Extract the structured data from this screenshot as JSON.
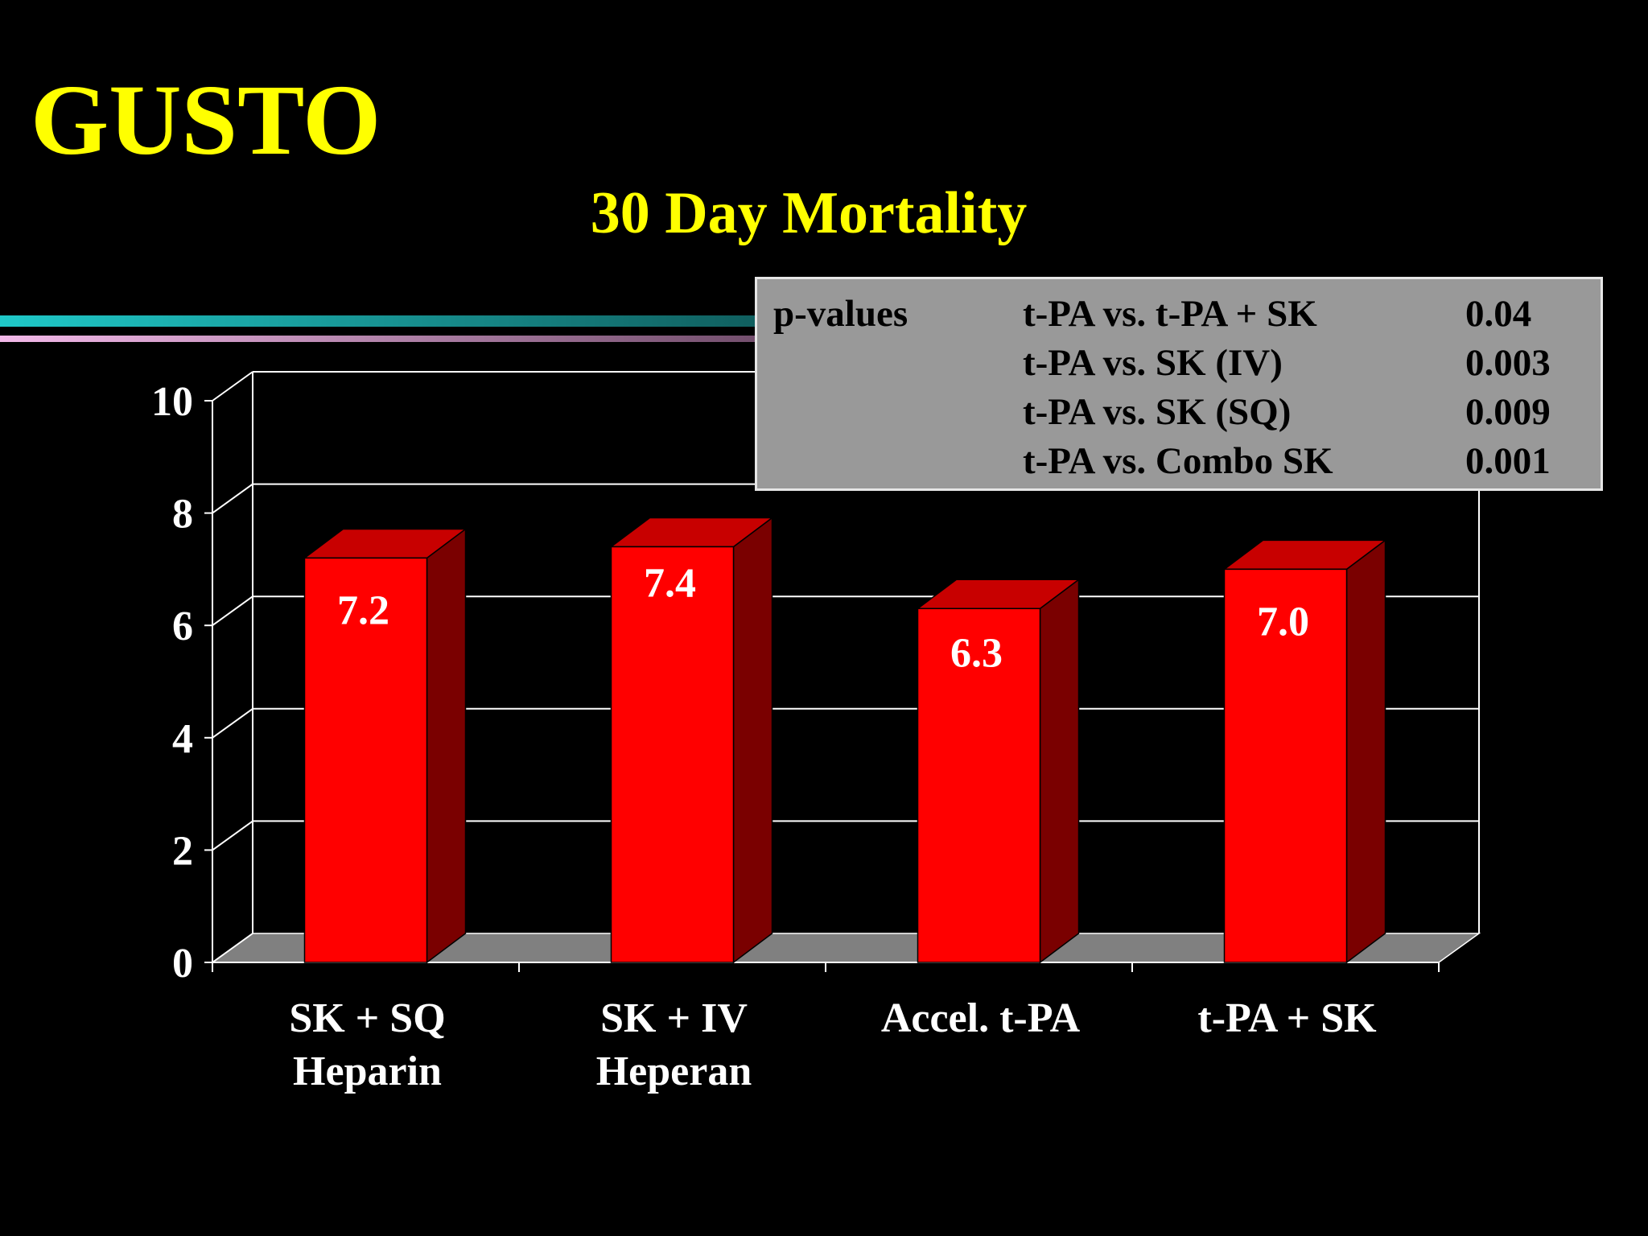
{
  "slide": {
    "title": "GUSTO",
    "subtitle": "30 Day Mortality",
    "title_color": "#ffff00",
    "stripe_colors": [
      "#1fc8c8",
      "#f2b8e8"
    ]
  },
  "pvalues": {
    "label": "p-values",
    "rows": [
      {
        "comparison": "t-PA vs. t-PA + SK",
        "value": "0.04"
      },
      {
        "comparison": "t-PA vs. SK (IV)",
        "value": "0.003"
      },
      {
        "comparison": "t-PA vs. SK (SQ)",
        "value": "0.009"
      },
      {
        "comparison": "t-PA vs. Combo SK",
        "value": "0.001"
      }
    ]
  },
  "chart_data": {
    "type": "bar",
    "categories": [
      [
        "SK + SQ",
        "Heparin"
      ],
      [
        "SK +  IV",
        "Heperan"
      ],
      [
        "Accel. t-PA"
      ],
      [
        "t-PA + SK"
      ]
    ],
    "values": [
      7.2,
      7.4,
      6.3,
      7.0
    ],
    "data_labels": [
      "7.2",
      "7.4",
      "6.3",
      "7.0"
    ],
    "ylim": [
      0,
      10
    ],
    "yticks": [
      0,
      2,
      4,
      6,
      8,
      10
    ],
    "ytick_labels": [
      "0",
      "2",
      "4",
      "6",
      "8",
      "10"
    ],
    "grid": true,
    "bar_color": "#ff0000",
    "bar_side_color": "#7a0000",
    "bar_top_color": "#c80000",
    "floor_color": "#808080",
    "text_color": "#ffffff"
  }
}
